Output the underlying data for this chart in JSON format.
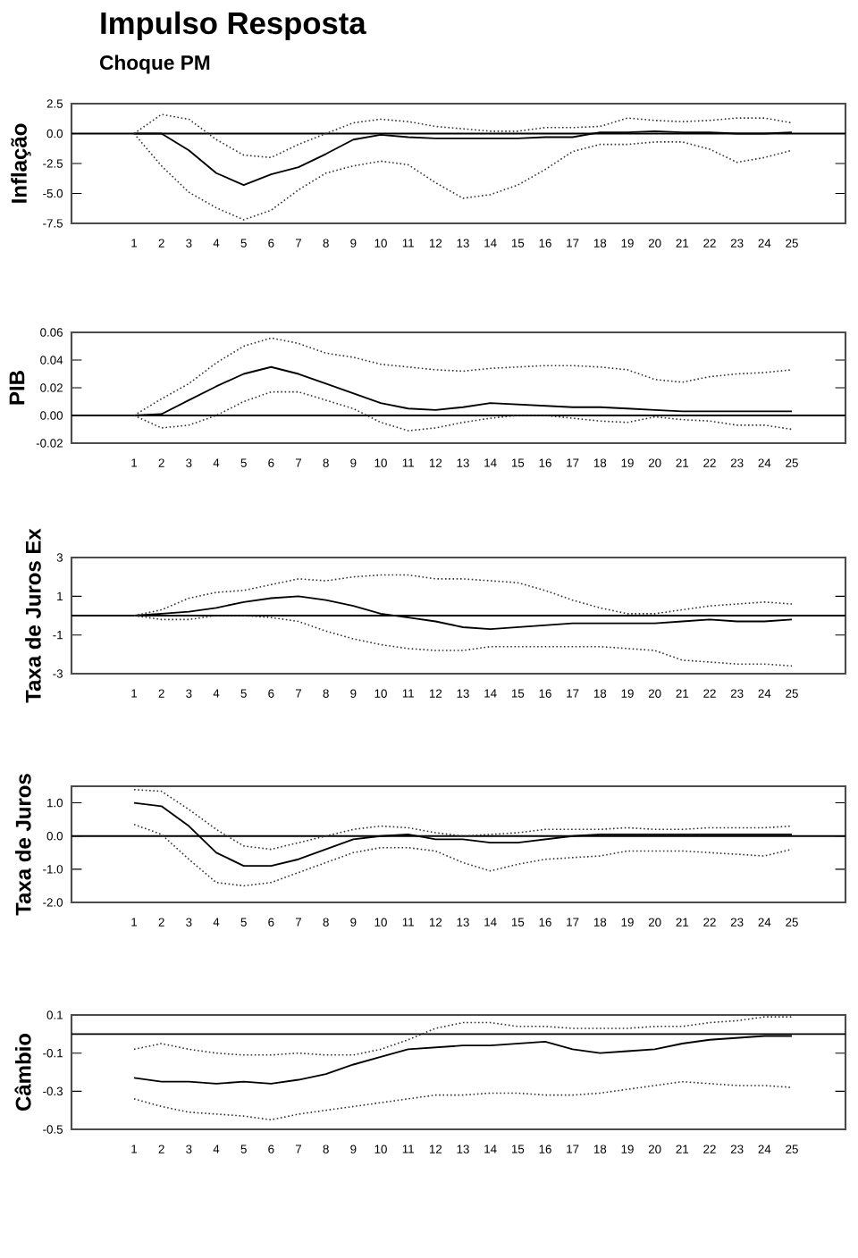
{
  "chart_data": [
    {
      "type": "line",
      "title": "Impulso Resposta",
      "subtitle": "Choque PM",
      "ylabel": "Inflação",
      "categories": [
        "1",
        "2",
        "3",
        "4",
        "5",
        "6",
        "7",
        "8",
        "9",
        "10",
        "11",
        "12",
        "13",
        "14",
        "15",
        "16",
        "17",
        "18",
        "19",
        "20",
        "21",
        "22",
        "23",
        "24",
        "25"
      ],
      "ylim": [
        -7.5,
        2.5
      ],
      "yticks": [
        2.5,
        {
          "value": 0,
          "label": "0.0"
        },
        -2.5,
        {
          "value": -5,
          "label": "-5.0"
        },
        -7.5
      ],
      "marker": "none",
      "ref_lines": [
        {
          "axis": "y",
          "value": 0,
          "color": "#000000"
        }
      ],
      "series": [
        {
          "color": "#000000",
          "line_style": "solid",
          "values": [
            0,
            0,
            -1.4,
            -3.3,
            -4.3,
            -3.4,
            -2.8,
            -1.7,
            -0.5,
            -0.1,
            -0.3,
            -0.4,
            -0.4,
            -0.4,
            -0.4,
            -0.3,
            -0.3,
            0.1,
            0.1,
            0.2,
            0.1,
            0.1,
            0,
            0,
            0.1
          ]
        },
        {
          "color": "#333333",
          "line_style": "dotted",
          "values": [
            0,
            1.6,
            1.2,
            -0.5,
            -1.8,
            -2.0,
            -0.9,
            0,
            0.9,
            1.2,
            1.0,
            0.6,
            0.4,
            0.2,
            0.2,
            0.5,
            0.5,
            0.6,
            1.3,
            1.1,
            1.0,
            1.1,
            1.3,
            1.3,
            0.9
          ]
        },
        {
          "color": "#333333",
          "line_style": "dotted",
          "values": [
            0,
            -2.7,
            -4.9,
            -6.2,
            -7.2,
            -6.4,
            -4.7,
            -3.3,
            -2.7,
            -2.3,
            -2.6,
            -4.1,
            -5.4,
            -5.1,
            -4.3,
            -3.0,
            -1.5,
            -0.9,
            -0.9,
            -0.7,
            -0.7,
            -1.3,
            -2.4,
            -2.0,
            -1.4
          ]
        }
      ]
    },
    {
      "type": "line",
      "ylabel": "PIB",
      "categories": [
        "1",
        "2",
        "3",
        "4",
        "5",
        "6",
        "7",
        "8",
        "9",
        "10",
        "11",
        "12",
        "13",
        "14",
        "15",
        "16",
        "17",
        "18",
        "19",
        "20",
        "21",
        "22",
        "23",
        "24",
        "25"
      ],
      "ylim": [
        -0.02,
        0.06
      ],
      "yticks": [
        {
          "value": 0.06,
          "label": "0.06"
        },
        {
          "value": 0.04,
          "label": "0.04"
        },
        {
          "value": 0.02,
          "label": "0.02"
        },
        {
          "value": 0,
          "label": "0.00"
        },
        {
          "value": -0.02,
          "label": "-0.02"
        }
      ],
      "marker": "none",
      "ref_lines": [
        {
          "axis": "y",
          "value": 0,
          "color": "#000000"
        }
      ],
      "series": [
        {
          "color": "#000000",
          "line_style": "solid",
          "values": [
            0,
            0.001,
            0.011,
            0.021,
            0.03,
            0.035,
            0.03,
            0.023,
            0.016,
            0.009,
            0.005,
            0.004,
            0.006,
            0.009,
            0.008,
            0.007,
            0.006,
            0.006,
            0.005,
            0.004,
            0.003,
            0.003,
            0.003,
            0.003,
            0.003
          ]
        },
        {
          "color": "#333333",
          "line_style": "dotted",
          "values": [
            0,
            0.012,
            0.023,
            0.038,
            0.05,
            0.056,
            0.052,
            0.045,
            0.042,
            0.037,
            0.035,
            0.033,
            0.032,
            0.034,
            0.035,
            0.036,
            0.036,
            0.035,
            0.033,
            0.026,
            0.024,
            0.028,
            0.03,
            0.031,
            0.033
          ]
        },
        {
          "color": "#333333",
          "line_style": "dotted",
          "values": [
            0,
            -0.009,
            -0.007,
            0,
            0.01,
            0.017,
            0.017,
            0.011,
            0.005,
            -0.005,
            -0.011,
            -0.009,
            -0.005,
            -0.002,
            0,
            0,
            -0.002,
            -0.004,
            -0.005,
            -0.001,
            -0.003,
            -0.004,
            -0.007,
            -0.007,
            -0.01
          ]
        }
      ]
    },
    {
      "type": "line",
      "ylabel": "Taxa de Juros Ex",
      "categories": [
        "1",
        "2",
        "3",
        "4",
        "5",
        "6",
        "7",
        "8",
        "9",
        "10",
        "11",
        "12",
        "13",
        "14",
        "15",
        "16",
        "17",
        "18",
        "19",
        "20",
        "21",
        "22",
        "23",
        "24",
        "25"
      ],
      "ylim": [
        -3,
        3
      ],
      "yticks": [
        3,
        1,
        -1,
        -3
      ],
      "marker": "none",
      "ref_lines": [
        {
          "axis": "y",
          "value": 0,
          "color": "#000000"
        }
      ],
      "series": [
        {
          "color": "#000000",
          "line_style": "solid",
          "values": [
            0,
            0.1,
            0.2,
            0.4,
            0.7,
            0.9,
            1.0,
            0.8,
            0.5,
            0.1,
            -0.1,
            -0.3,
            -0.6,
            -0.7,
            -0.6,
            -0.5,
            -0.4,
            -0.4,
            -0.4,
            -0.4,
            -0.3,
            -0.2,
            -0.3,
            -0.3,
            -0.2
          ]
        },
        {
          "color": "#333333",
          "line_style": "dotted",
          "values": [
            0,
            0.3,
            0.9,
            1.2,
            1.3,
            1.6,
            1.9,
            1.8,
            2.0,
            2.1,
            2.1,
            1.9,
            1.9,
            1.8,
            1.7,
            1.3,
            0.8,
            0.4,
            0.1,
            0.1,
            0.3,
            0.5,
            0.6,
            0.7,
            0.6
          ]
        },
        {
          "color": "#333333",
          "line_style": "dotted",
          "values": [
            0,
            -0.2,
            -0.2,
            0,
            0,
            -0.1,
            -0.3,
            -0.8,
            -1.2,
            -1.5,
            -1.7,
            -1.8,
            -1.8,
            -1.6,
            -1.6,
            -1.6,
            -1.6,
            -1.6,
            -1.7,
            -1.8,
            -2.3,
            -2.4,
            -2.5,
            -2.5,
            -2.6
          ]
        }
      ]
    },
    {
      "type": "line",
      "ylabel": "Taxa de Juros",
      "categories": [
        "1",
        "2",
        "3",
        "4",
        "5",
        "6",
        "7",
        "8",
        "9",
        "10",
        "11",
        "12",
        "13",
        "14",
        "15",
        "16",
        "17",
        "18",
        "19",
        "20",
        "21",
        "22",
        "23",
        "24",
        "25"
      ],
      "ylim": [
        -2,
        1.5
      ],
      "yticks": [
        {
          "value": 1,
          "label": "1.0"
        },
        {
          "value": 0,
          "label": "0.0"
        },
        {
          "value": -1,
          "label": "-1.0"
        },
        {
          "value": -2,
          "label": "-2.0"
        }
      ],
      "marker": "none",
      "ref_lines": [
        {
          "axis": "y",
          "value": 0,
          "color": "#000000"
        }
      ],
      "series": [
        {
          "color": "#000000",
          "line_style": "solid",
          "values": [
            1.0,
            0.9,
            0.3,
            -0.5,
            -0.9,
            -0.9,
            -0.7,
            -0.4,
            -0.1,
            0,
            0.05,
            -0.1,
            -0.1,
            -0.2,
            -0.2,
            -0.1,
            0,
            0.05,
            0.05,
            0.05,
            0.05,
            0.05,
            0.05,
            0.05,
            0.05
          ]
        },
        {
          "color": "#333333",
          "line_style": "dotted",
          "values": [
            1.4,
            1.35,
            0.8,
            0.2,
            -0.3,
            -0.4,
            -0.2,
            0,
            0.2,
            0.3,
            0.25,
            0.1,
            0,
            0.05,
            0.1,
            0.2,
            0.2,
            0.2,
            0.25,
            0.2,
            0.2,
            0.25,
            0.25,
            0.25,
            0.3
          ]
        },
        {
          "color": "#333333",
          "line_style": "dotted",
          "values": [
            0.35,
            0.05,
            -0.7,
            -1.4,
            -1.5,
            -1.4,
            -1.1,
            -0.8,
            -0.5,
            -0.35,
            -0.35,
            -0.45,
            -0.8,
            -1.05,
            -0.85,
            -0.7,
            -0.65,
            -0.6,
            -0.45,
            -0.45,
            -0.45,
            -0.5,
            -0.55,
            -0.6,
            -0.4
          ]
        }
      ]
    },
    {
      "type": "line",
      "ylabel": "Câmbio",
      "categories": [
        "1",
        "2",
        "3",
        "4",
        "5",
        "6",
        "7",
        "8",
        "9",
        "10",
        "11",
        "12",
        "13",
        "14",
        "15",
        "16",
        "17",
        "18",
        "19",
        "20",
        "21",
        "22",
        "23",
        "24",
        "25"
      ],
      "ylim": [
        -0.5,
        0.1
      ],
      "yticks": [
        0.1,
        -0.1,
        -0.3,
        -0.5
      ],
      "marker": "none",
      "ref_lines": [
        {
          "axis": "y",
          "value": 0,
          "color": "#000000"
        }
      ],
      "series": [
        {
          "color": "#000000",
          "line_style": "solid",
          "values": [
            -0.23,
            -0.25,
            -0.25,
            -0.26,
            -0.25,
            -0.26,
            -0.24,
            -0.21,
            -0.16,
            -0.12,
            -0.08,
            -0.07,
            -0.06,
            -0.06,
            -0.05,
            -0.04,
            -0.08,
            -0.1,
            -0.09,
            -0.08,
            -0.05,
            -0.03,
            -0.02,
            -0.01,
            -0.01
          ]
        },
        {
          "color": "#333333",
          "line_style": "dotted",
          "values": [
            -0.08,
            -0.05,
            -0.08,
            -0.1,
            -0.11,
            -0.11,
            -0.1,
            -0.11,
            -0.11,
            -0.08,
            -0.03,
            0.03,
            0.06,
            0.06,
            0.04,
            0.04,
            0.03,
            0.03,
            0.03,
            0.04,
            0.04,
            0.06,
            0.07,
            0.09,
            0.09
          ]
        },
        {
          "color": "#333333",
          "line_style": "dotted",
          "values": [
            -0.34,
            -0.38,
            -0.41,
            -0.42,
            -0.43,
            -0.45,
            -0.42,
            -0.4,
            -0.38,
            -0.36,
            -0.34,
            -0.32,
            -0.32,
            -0.31,
            -0.31,
            -0.32,
            -0.32,
            -0.31,
            -0.29,
            -0.27,
            -0.25,
            -0.26,
            -0.27,
            -0.27,
            -0.28
          ]
        }
      ]
    }
  ]
}
